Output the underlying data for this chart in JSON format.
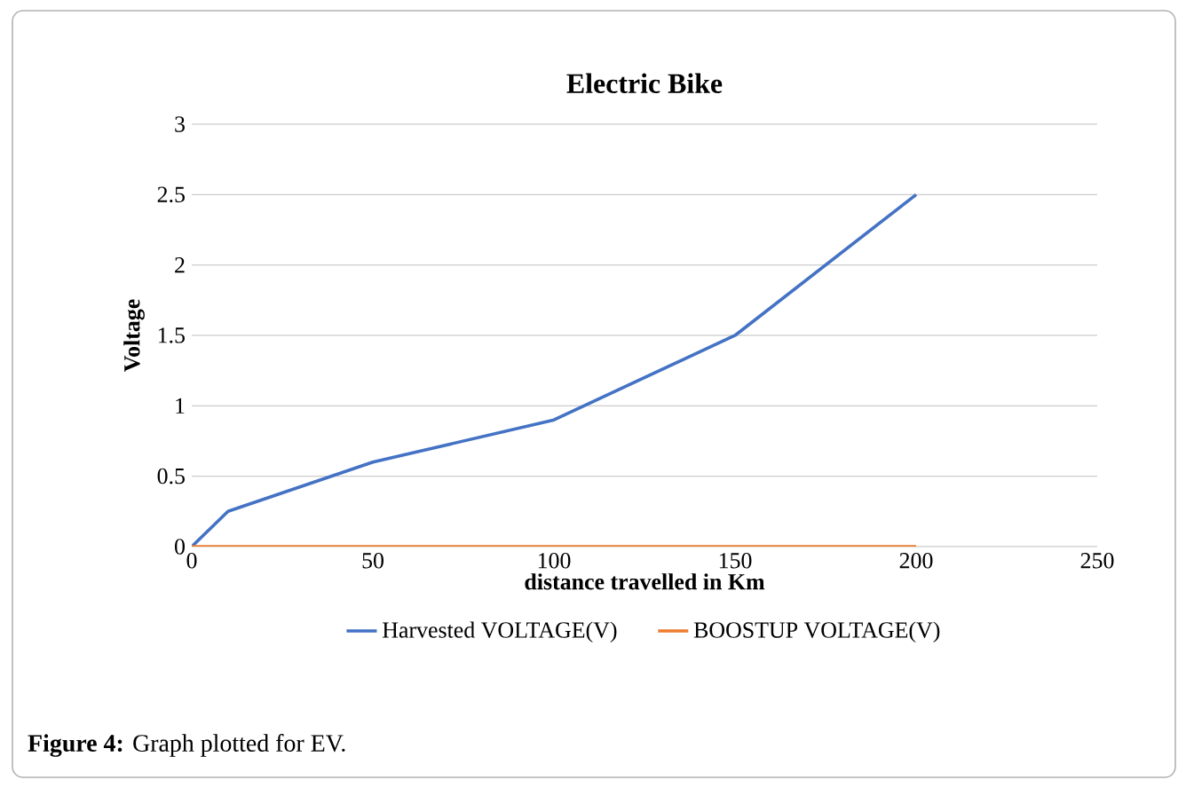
{
  "chart_data": {
    "type": "line",
    "title": "Electric Bike",
    "xlabel": "distance travelled in Km",
    "ylabel": "Voltage",
    "series": [
      {
        "name": "Harvested VOLTAGE(V)",
        "color": "#4472c4",
        "x": [
          0,
          10,
          50,
          100,
          150,
          200
        ],
        "values": [
          0,
          0.25,
          0.6,
          0.9,
          1.5,
          2.5
        ]
      },
      {
        "name": "BOOSTUP VOLTAGE(V)",
        "color": "#ed7d31",
        "x": [
          0,
          200
        ],
        "values": [
          0,
          0
        ]
      }
    ],
    "xlim": [
      0,
      250
    ],
    "xticks": [
      0,
      50,
      100,
      150,
      200,
      250
    ],
    "ylim": [
      0,
      3
    ],
    "yticks": [
      0,
      0.5,
      1,
      1.5,
      2,
      2.5,
      3
    ],
    "grid": "y",
    "legend": "bottom",
    "marker": "none",
    "line_style": "solid",
    "annotations": [
      "**Figure 4:** Graph plotted for EV."
    ]
  }
}
